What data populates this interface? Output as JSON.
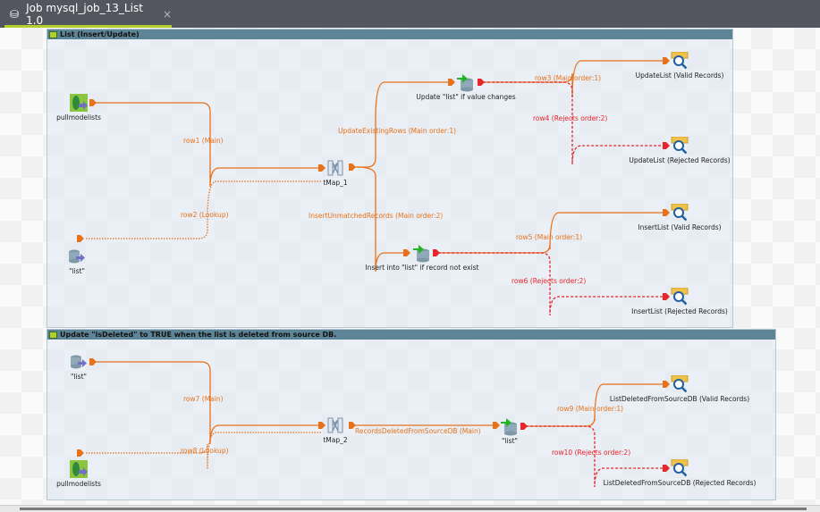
{
  "tab": {
    "title": "Job mysql_job_13_List 1.0",
    "icon": "job-icon",
    "close": "×"
  },
  "subjobs": [
    {
      "title": "List (Insert/Update)"
    },
    {
      "title": "Update \"isDeleted\" to TRUE when the list is deleted from source DB."
    }
  ],
  "nodes": {
    "pull1": {
      "label": "pullmodelists",
      "icon": "mongodb-input-icon"
    },
    "list1": {
      "label": "\"list\"",
      "icon": "database-input-icon"
    },
    "tmap1": {
      "label": "tMap_1",
      "icon": "tmap-icon"
    },
    "upd": {
      "label": "Update \"list\" if value changes",
      "icon": "database-output-icon"
    },
    "ins": {
      "label": "Insert into \"list\" if record not exist",
      "icon": "database-output-icon"
    },
    "ulv": {
      "label": "UpdateList (Valid Records)",
      "icon": "log-row-icon"
    },
    "ulr": {
      "label": "UpdateList (Rejected Records)",
      "icon": "log-row-icon"
    },
    "ilv": {
      "label": "InsertList (Valid Records)",
      "icon": "log-row-icon"
    },
    "ilr": {
      "label": "InsertList (Rejected Records)",
      "icon": "log-row-icon"
    },
    "list2": {
      "label": "\"list\"",
      "icon": "database-input-icon"
    },
    "pull2": {
      "label": "pullmodelists",
      "icon": "mongodb-input-icon"
    },
    "tmap2": {
      "label": "tMap_2",
      "icon": "tmap-icon"
    },
    "list3": {
      "label": "\"list\"",
      "icon": "database-output-icon"
    },
    "ldv": {
      "label": "ListDeletedFromSourceDB (Valid Records)",
      "icon": "log-row-icon"
    },
    "ldr": {
      "label": "ListDeletedFromSourceDB (Rejected Records)",
      "icon": "log-row-icon"
    }
  },
  "connections": {
    "row1": "row1 (Main)",
    "row2": "row2 (Lookup)",
    "uer": "UpdateExistingRows (Main order:1)",
    "imr": "InsertUnmatchedRecords (Main order:2)",
    "row3": "row3 (Main order:1)",
    "row4": "row4 (Rejects order:2)",
    "row5": "row5 (Main order:1)",
    "row6": "row6 (Rejects order:2)",
    "row7": "row7 (Main)",
    "row8": "row8 (Lookup)",
    "rdf": "RecordsDeletedFromSourceDB (Main)",
    "row9": "row9 (Main order:1)",
    "row10": "row10 (Rejects order:2)"
  },
  "colors": {
    "main": "#e8721c",
    "reject": "#e8242c",
    "subjob_header": "#5e8597",
    "tab_accent": "#b5cf2a"
  }
}
